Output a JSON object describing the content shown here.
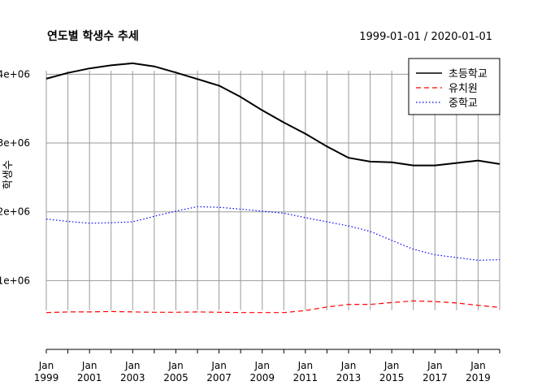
{
  "chart_data": {
    "type": "line",
    "title": "연도별 학생수 추세",
    "date_range_label": "1999-01-01 / 2020-01-01",
    "xlabel": "",
    "ylabel": "학생수",
    "x": [
      "1999-01-01",
      "2000-01-01",
      "2001-01-01",
      "2002-01-01",
      "2003-01-01",
      "2004-01-01",
      "2005-01-01",
      "2006-01-01",
      "2007-01-01",
      "2008-01-01",
      "2009-01-01",
      "2010-01-01",
      "2011-01-01",
      "2012-01-01",
      "2013-01-01",
      "2014-01-01",
      "2015-01-01",
      "2016-01-01",
      "2017-01-01",
      "2018-01-01",
      "2019-01-01",
      "2020-01-01"
    ],
    "xlim": [
      "1999-01-01",
      "2020-01-01"
    ],
    "ylim": [
      0,
      4300000
    ],
    "x_ticks": [
      {
        "date": "1999-01-01",
        "line1": "Jan",
        "line2": "1999"
      },
      {
        "date": "2001-01-01",
        "line1": "Jan",
        "line2": "2001"
      },
      {
        "date": "2003-01-01",
        "line1": "Jan",
        "line2": "2003"
      },
      {
        "date": "2005-01-01",
        "line1": "Jan",
        "line2": "2005"
      },
      {
        "date": "2007-01-01",
        "line1": "Jan",
        "line2": "2007"
      },
      {
        "date": "2009-01-01",
        "line1": "Jan",
        "line2": "2009"
      },
      {
        "date": "2011-01-01",
        "line1": "Jan",
        "line2": "2011"
      },
      {
        "date": "2013-01-01",
        "line1": "Jan",
        "line2": "2013"
      },
      {
        "date": "2015-01-01",
        "line1": "Jan",
        "line2": "2015"
      },
      {
        "date": "2017-01-01",
        "line1": "Jan",
        "line2": "2017"
      },
      {
        "date": "2019-01-01",
        "line1": "Jan",
        "line2": "2019"
      }
    ],
    "y_ticks": [
      {
        "value": 1000000,
        "label": "1e+06"
      },
      {
        "value": 2000000,
        "label": "2e+06"
      },
      {
        "value": 3000000,
        "label": "3e+06"
      },
      {
        "value": 4000000,
        "label": "4e+06"
      }
    ],
    "grid": "vertical-yearly and horizontal-major",
    "legend_position": "top-right",
    "series": [
      {
        "name": "초등학교",
        "color": "#000000",
        "dash": "solid",
        "values": [
          3935000,
          4020000,
          4085000,
          4130000,
          4160000,
          4115000,
          4025000,
          3930000,
          3835000,
          3670000,
          3475000,
          3300000,
          3135000,
          2950000,
          2785000,
          2730000,
          2720000,
          2675000,
          2675000,
          2710000,
          2745000,
          2695000
        ]
      },
      {
        "name": "유치원",
        "color": "#ff0000",
        "dash": "dashed",
        "values": [
          535000,
          545000,
          545000,
          550000,
          545000,
          540000,
          540000,
          545000,
          540000,
          535000,
          535000,
          535000,
          565000,
          615000,
          655000,
          655000,
          680000,
          705000,
          695000,
          675000,
          640000,
          610000
        ]
      },
      {
        "name": "중학교",
        "color": "#0000ff",
        "dash": "dotted",
        "values": [
          1895000,
          1860000,
          1835000,
          1840000,
          1855000,
          1935000,
          2010000,
          2075000,
          2065000,
          2040000,
          2010000,
          1980000,
          1915000,
          1855000,
          1795000,
          1715000,
          1585000,
          1455000,
          1375000,
          1335000,
          1295000,
          1305000
        ]
      }
    ]
  }
}
